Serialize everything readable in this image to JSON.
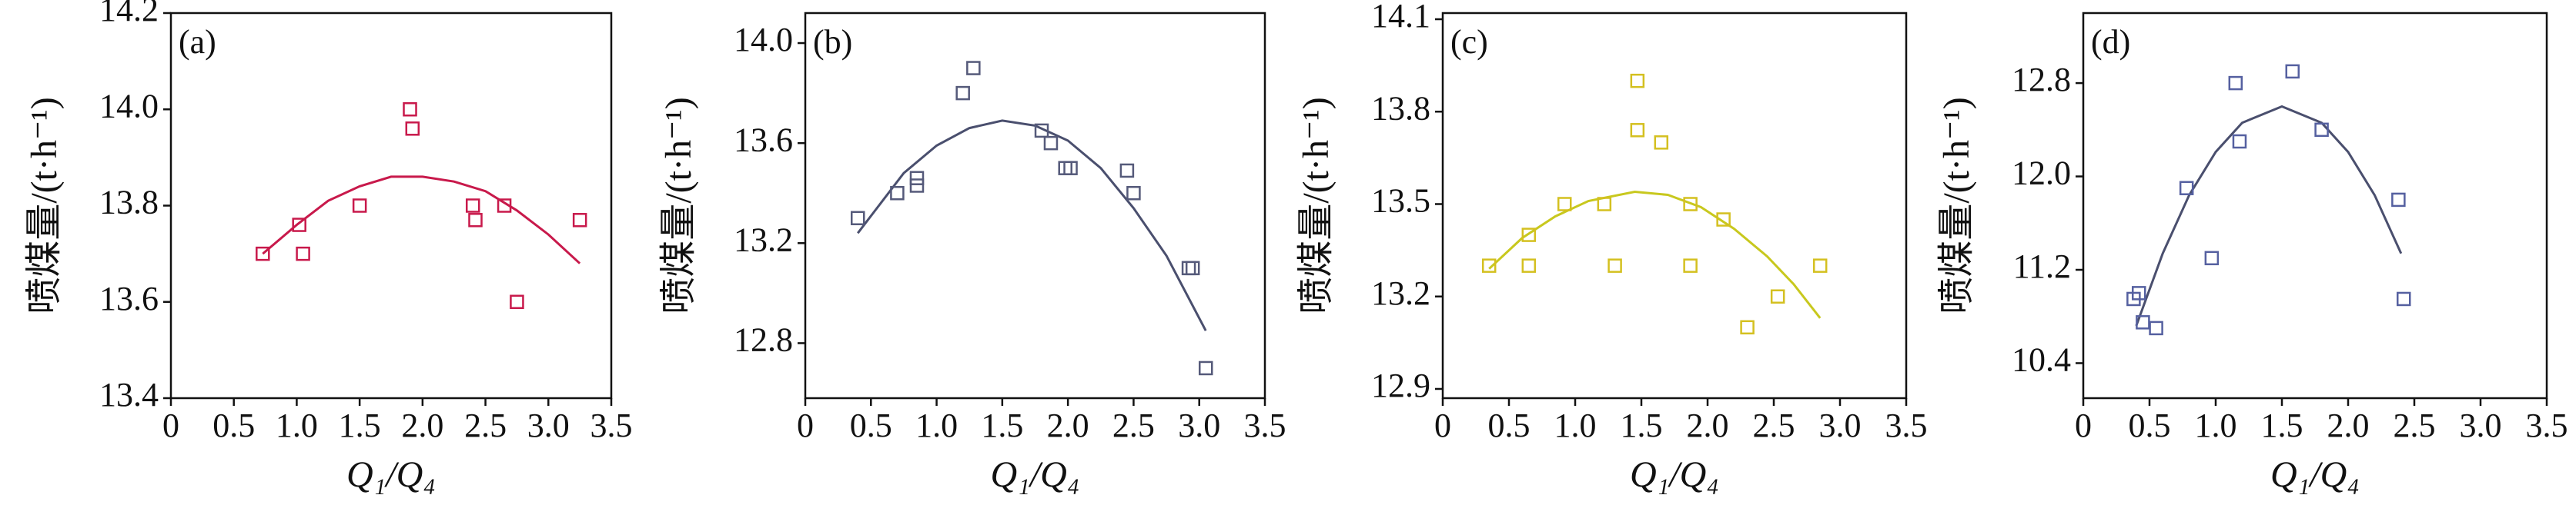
{
  "chart_data": [
    {
      "type": "scatter",
      "panel_label": "(a)",
      "ylabel": "喷煤量/(t·h⁻¹)",
      "xlabel": "Q₁/Q₄",
      "marker_color": "#c8194b",
      "line_color": "#c8194b",
      "xlim": [
        0,
        3.5
      ],
      "ylim": [
        13.4,
        14.2
      ],
      "xticks": [
        0,
        0.5,
        {
          "value": 1,
          "label": "1.0"
        },
        1.5,
        {
          "value": 2,
          "label": "2.0"
        },
        2.5,
        {
          "value": 3,
          "label": "3.0"
        },
        3.5
      ],
      "yticks": [
        13.4,
        13.6,
        13.8,
        {
          "value": 14,
          "label": "14.0"
        },
        14.2
      ],
      "x": [
        0.73,
        1.02,
        1.05,
        1.5,
        1.9,
        1.92,
        2.4,
        2.42,
        2.65,
        2.75,
        3.25
      ],
      "values": [
        13.7,
        13.76,
        13.7,
        13.8,
        14.0,
        13.96,
        13.8,
        13.77,
        13.8,
        13.6,
        13.77
      ],
      "fit_x": [
        0.73,
        1.0,
        1.25,
        1.5,
        1.75,
        2.0,
        2.25,
        2.5,
        2.75,
        3.0,
        3.25
      ],
      "fit_values": [
        13.7,
        13.76,
        13.81,
        13.84,
        13.86,
        13.86,
        13.85,
        13.83,
        13.79,
        13.74,
        13.68
      ]
    },
    {
      "type": "scatter",
      "panel_label": "(b)",
      "ylabel": "喷煤量/(t·h⁻¹)",
      "xlabel": "Q₁/Q₄",
      "marker_color": "#555a7a",
      "line_color": "#4a4f6e",
      "xlim": [
        0,
        3.5
      ],
      "ylim": [
        12.58,
        14.12
      ],
      "xticks": [
        0,
        0.5,
        {
          "value": 1,
          "label": "1.0"
        },
        1.5,
        {
          "value": 2,
          "label": "2.0"
        },
        2.5,
        {
          "value": 3,
          "label": "3.0"
        },
        3.5
      ],
      "yticks": [
        12.8,
        13.2,
        13.6,
        {
          "value": 14,
          "label": "14.0"
        }
      ],
      "x": [
        0.4,
        0.7,
        0.85,
        0.85,
        1.2,
        1.28,
        1.8,
        1.87,
        1.98,
        2.02,
        2.45,
        2.5,
        2.92,
        2.95,
        3.05
      ],
      "values": [
        13.3,
        13.4,
        13.43,
        13.46,
        13.8,
        13.9,
        13.65,
        13.6,
        13.5,
        13.5,
        13.49,
        13.4,
        13.1,
        13.1,
        12.7
      ],
      "fit_x": [
        0.4,
        0.75,
        1.0,
        1.25,
        1.5,
        1.75,
        2.0,
        2.25,
        2.5,
        2.75,
        3.05
      ],
      "fit_values": [
        13.24,
        13.48,
        13.59,
        13.66,
        13.69,
        13.67,
        13.61,
        13.5,
        13.34,
        13.15,
        12.85
      ]
    },
    {
      "type": "scatter",
      "panel_label": "(c)",
      "ylabel": "喷煤量/(t·h⁻¹)",
      "xlabel": "Q₁/Q₄",
      "marker_color": "#d4c020",
      "line_color": "#c8c81e",
      "xlim": [
        0,
        3.5
      ],
      "ylim": [
        12.87,
        14.12
      ],
      "xticks": [
        0,
        0.5,
        {
          "value": 1,
          "label": "1.0"
        },
        1.5,
        {
          "value": 2,
          "label": "2.0"
        },
        2.5,
        {
          "value": 3,
          "label": "3.0"
        },
        3.5
      ],
      "yticks": [
        12.9,
        13.2,
        13.5,
        13.8,
        14.1
      ],
      "x": [
        0.35,
        0.65,
        0.65,
        0.92,
        1.22,
        1.3,
        1.47,
        1.47,
        1.65,
        1.87,
        1.87,
        2.12,
        2.3,
        2.53,
        2.85
      ],
      "values": [
        13.3,
        13.4,
        13.3,
        13.5,
        13.5,
        13.3,
        13.9,
        13.74,
        13.7,
        13.5,
        13.3,
        13.45,
        13.1,
        13.2,
        13.3
      ],
      "fit_x": [
        0.35,
        0.6,
        0.85,
        1.1,
        1.45,
        1.7,
        1.95,
        2.2,
        2.45,
        2.65,
        2.85
      ],
      "fit_values": [
        13.29,
        13.39,
        13.46,
        13.51,
        13.54,
        13.53,
        13.49,
        13.42,
        13.33,
        13.24,
        13.13
      ]
    },
    {
      "type": "scatter",
      "panel_label": "(d)",
      "ylabel": "喷煤量/(t·h⁻¹)",
      "xlabel": "Q₁/Q₄",
      "marker_color": "#5560a0",
      "line_color": "#4a4f6e",
      "xlim": [
        0,
        3.5
      ],
      "ylim": [
        10.1,
        13.4
      ],
      "xticks": [
        0,
        0.5,
        {
          "value": 1,
          "label": "1.0"
        },
        1.5,
        {
          "value": 2,
          "label": "2.0"
        },
        2.5,
        {
          "value": 3,
          "label": "3.0"
        },
        3.5
      ],
      "yticks": [
        10.4,
        11.2,
        {
          "value": 12,
          "label": "12.0"
        },
        12.8
      ],
      "x": [
        0.38,
        0.42,
        0.45,
        0.55,
        0.78,
        0.97,
        1.15,
        1.18,
        1.58,
        1.8,
        2.38,
        2.42
      ],
      "values": [
        10.95,
        11.0,
        10.75,
        10.7,
        11.9,
        11.3,
        12.8,
        12.3,
        12.9,
        12.4,
        11.8,
        10.95
      ],
      "fit_x": [
        0.4,
        0.6,
        0.8,
        1.0,
        1.2,
        1.5,
        1.8,
        2.0,
        2.2,
        2.4
      ],
      "fit_values": [
        10.72,
        11.34,
        11.84,
        12.21,
        12.46,
        12.6,
        12.46,
        12.21,
        11.84,
        11.34
      ]
    }
  ]
}
